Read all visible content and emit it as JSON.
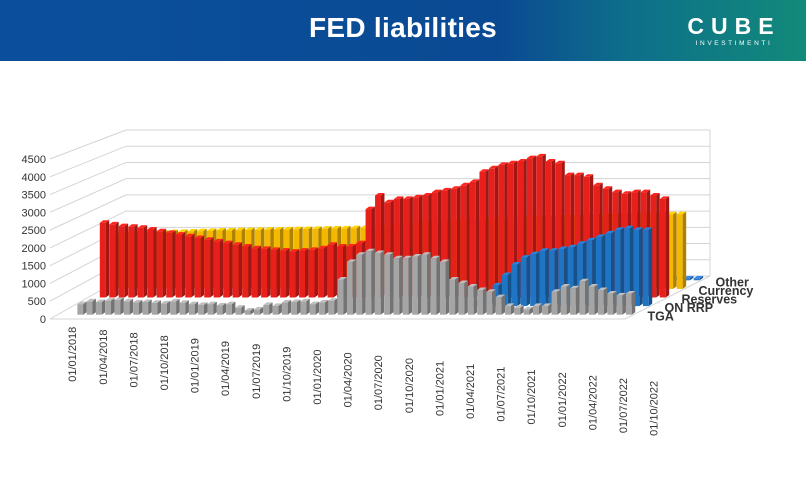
{
  "header": {
    "title": "FED liabilities",
    "logo_word": "CUBE",
    "logo_sub": "INVESTIMENTI"
  },
  "chart_data": {
    "type": "bar",
    "chart_subtype": "3d-clustered-bar",
    "title": "FED liabilities",
    "xlabel": "",
    "ylabel": "",
    "ylim": [
      0,
      4500
    ],
    "yticks": [
      0,
      500,
      1000,
      1500,
      2000,
      2500,
      3000,
      3500,
      4000,
      4500
    ],
    "xtick_labels": [
      "01/01/2018",
      "01/04/2018",
      "01/07/2018",
      "01/10/2018",
      "01/01/2019",
      "01/04/2019",
      "01/07/2019",
      "01/10/2019",
      "01/01/2020",
      "01/04/2020",
      "01/07/2020",
      "01/10/2020",
      "01/01/2021",
      "01/04/2021",
      "01/07/2021",
      "01/10/2021",
      "01/01/2022",
      "01/04/2022",
      "01/07/2022",
      "01/10/2022"
    ],
    "periods_per_label": 3,
    "grid": true,
    "legend": "series labels at right end of depth axis",
    "colors": {
      "Other": "#2e78c9",
      "Currency": "#f5b800",
      "Reserves": "#e8201b",
      "ON RRP": "#1f74c4",
      "TGA": "#a5a5a5"
    },
    "series": [
      {
        "name": "Other",
        "values": [
          60,
          60,
          60,
          60,
          60,
          60,
          60,
          60,
          60,
          60,
          60,
          60,
          60,
          60,
          60,
          60,
          60,
          60,
          60,
          60,
          60,
          60,
          60,
          60,
          60,
          60,
          60,
          60,
          60,
          60,
          60,
          60,
          60,
          60,
          60,
          60,
          60,
          60,
          60,
          60,
          60,
          60,
          60,
          60,
          60,
          60,
          60,
          60,
          60,
          60,
          60,
          60,
          60,
          60,
          60,
          60,
          60,
          60,
          60,
          60
        ]
      },
      {
        "name": "Currency",
        "values": [
          1640,
          1650,
          1660,
          1670,
          1680,
          1690,
          1700,
          1710,
          1720,
          1730,
          1740,
          1750,
          1755,
          1760,
          1765,
          1770,
          1775,
          1780,
          1785,
          1790,
          1795,
          1800,
          1805,
          1810,
          1815,
          1820,
          1825,
          1830,
          1835,
          1850,
          1900,
          1930,
          1960,
          1990,
          2010,
          2030,
          2050,
          2060,
          2070,
          2080,
          2090,
          2100,
          2110,
          2120,
          2125,
          2130,
          2140,
          2150,
          2160,
          2170,
          2180,
          2190,
          2200,
          2210,
          2215,
          2220,
          2225,
          2230,
          2235,
          2240
        ]
      },
      {
        "name": "Reserves",
        "values": [
          2200,
          2150,
          2100,
          2080,
          2050,
          2000,
          1950,
          1900,
          1850,
          1800,
          1750,
          1700,
          1650,
          1600,
          1550,
          1500,
          1450,
          1430,
          1400,
          1380,
          1350,
          1380,
          1400,
          1450,
          1550,
          1500,
          1500,
          1600,
          2600,
          3000,
          2800,
          2900,
          2900,
          2950,
          3000,
          3100,
          3150,
          3200,
          3300,
          3400,
          3700,
          3800,
          3900,
          3950,
          4000,
          4100,
          4150,
          4000,
          3950,
          3600,
          3600,
          3550,
          3300,
          3200,
          3100,
          3050,
          3100,
          3100,
          3000,
          2900
        ]
      },
      {
        "name": "ON RRP",
        "values": [
          0,
          0,
          0,
          0,
          0,
          0,
          0,
          0,
          0,
          0,
          0,
          0,
          0,
          0,
          0,
          0,
          0,
          0,
          0,
          0,
          0,
          0,
          0,
          0,
          0,
          0,
          0,
          0,
          0,
          0,
          0,
          0,
          0,
          0,
          0,
          0,
          0,
          0,
          0,
          0,
          0,
          100,
          200,
          600,
          900,
          1200,
          1400,
          1500,
          1600,
          1600,
          1650,
          1700,
          1800,
          1900,
          2000,
          2100,
          2200,
          2250,
          2200,
          2200
        ]
      },
      {
        "name": "TGA",
        "values": [
          300,
          380,
          360,
          400,
          420,
          380,
          350,
          360,
          340,
          320,
          380,
          340,
          300,
          280,
          300,
          260,
          300,
          200,
          120,
          150,
          280,
          250,
          350,
          360,
          380,
          300,
          350,
          400,
          1000,
          1500,
          1700,
          1800,
          1750,
          1700,
          1600,
          1600,
          1650,
          1700,
          1600,
          1500,
          1000,
          900,
          800,
          700,
          650,
          500,
          250,
          200,
          150,
          250,
          250,
          650,
          800,
          750,
          950,
          800,
          700,
          600,
          550,
          600
        ]
      }
    ]
  }
}
